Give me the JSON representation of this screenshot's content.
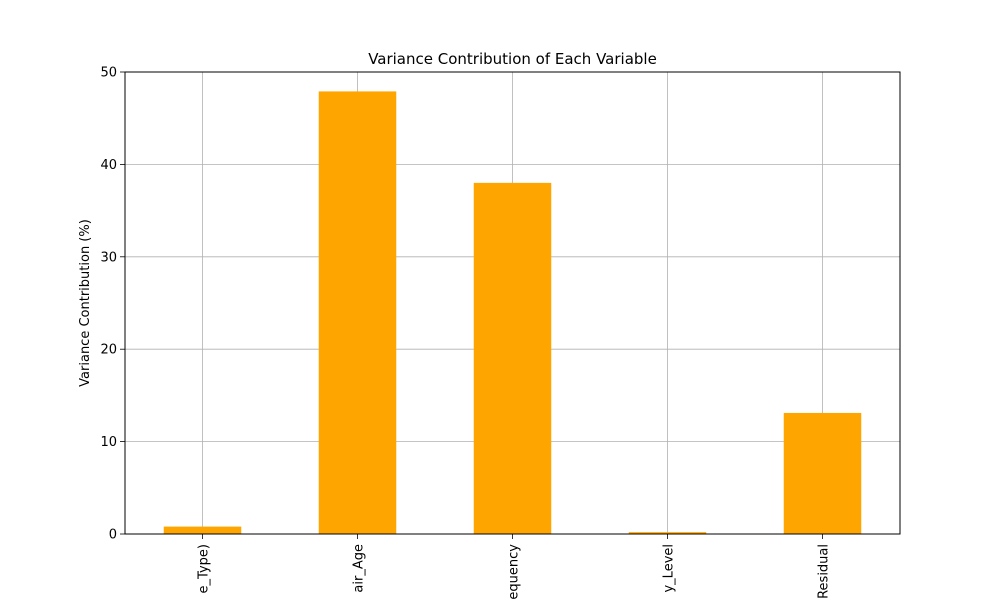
{
  "chart_data": {
    "type": "bar",
    "title": "Variance Contribution of Each Variable",
    "xlabel": "",
    "ylabel": "Variance Contribution (%)",
    "categories": [
      "e_Type)",
      "air_Age",
      "equency",
      "y_Level",
      "Residual"
    ],
    "values": [
      0.8,
      47.9,
      38.0,
      0.2,
      13.1
    ],
    "ylim": [
      0,
      50
    ],
    "yticks": [
      0,
      10,
      20,
      30,
      40,
      50
    ],
    "bar_color": "#ffa500",
    "grid": true,
    "legend": "none"
  }
}
